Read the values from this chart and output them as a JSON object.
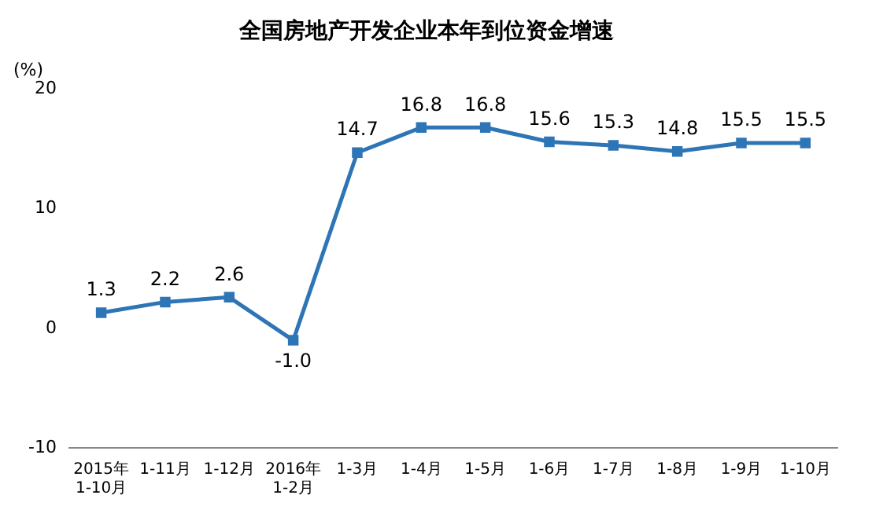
{
  "chart_data": {
    "type": "line",
    "title": "全国房地产开发企业本年到位资金增速",
    "ylabel": "(%)",
    "categories": [
      "2015年\n1-10月",
      "1-11月",
      "1-12月",
      "2016年\n1-2月",
      "1-3月",
      "1-4月",
      "1-5月",
      "1-6月",
      "1-7月",
      "1-8月",
      "1-9月",
      "1-10月"
    ],
    "series": [
      {
        "color": "#2e75b6",
        "values": [
          1.3,
          2.2,
          2.6,
          -1.0,
          14.7,
          16.8,
          16.8,
          15.6,
          15.3,
          14.8,
          15.5,
          15.5
        ],
        "value_labels": [
          "1.3",
          "2.2",
          "2.6",
          "-1.0",
          "14.7",
          "16.8",
          "16.8",
          "15.6",
          "15.3",
          "14.8",
          "15.5",
          "15.5"
        ]
      }
    ],
    "ylim": [
      -10,
      20
    ],
    "yticks": [
      -10,
      0,
      10,
      20
    ],
    "grid": false,
    "legend": false,
    "marker": "square",
    "line_style": "solid"
  }
}
